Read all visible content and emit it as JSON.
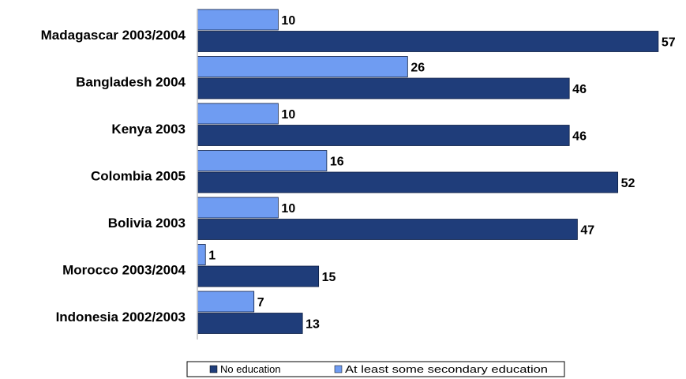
{
  "chart_data": {
    "type": "bar",
    "orientation": "horizontal",
    "categories": [
      "Madagascar 2003/2004",
      "Bangladesh 2004",
      "Kenya 2003",
      "Colombia 2005",
      "Bolivia 2003",
      "Morocco 2003/2004",
      "Indonesia 2002/2003"
    ],
    "series": [
      {
        "name": "At least some secondary education",
        "color": "#6f9cf2",
        "values": [
          10,
          26,
          10,
          16,
          10,
          1,
          7
        ]
      },
      {
        "name": "No education",
        "color": "#1f3d7a",
        "values": [
          57,
          46,
          46,
          52,
          47,
          15,
          13
        ]
      }
    ],
    "legend_order": [
      "No education",
      "At least some secondary education"
    ],
    "legend_position": "bottom",
    "xlim": [
      0,
      60
    ],
    "grid": false,
    "data_labels": true
  }
}
